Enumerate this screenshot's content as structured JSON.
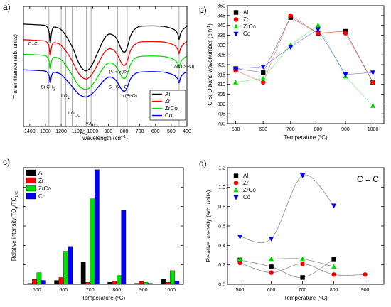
{
  "panel_letters": [
    "a)",
    "b)",
    "c)",
    "d)"
  ],
  "colors": {
    "Al": "#000000",
    "Zr": "#ff0000",
    "ZrCo": "#00dd00",
    "Co": "#0000ff"
  },
  "chart_data": [
    {
      "panel": "a)",
      "type": "line",
      "xlabel": "wavelength (cm",
      "xlabel_sup": "-1",
      "xlabel_end": ")",
      "ylabel": "Transmittance (arb. units)",
      "xlim": [
        1440,
        400
      ],
      "xticks": [
        1400,
        1300,
        1200,
        1100,
        1000,
        900,
        800,
        700,
        600,
        500,
        400
      ],
      "legend_position": "lower-right",
      "series": [
        {
          "name": "Al",
          "color": "#000000",
          "offset": 0.58,
          "x": [
            1440,
            1380,
            1330,
            1300,
            1290,
            1278,
            1270,
            1262,
            1250,
            1220,
            1200,
            1180,
            1150,
            1120,
            1100,
            1080,
            1060,
            1040,
            1020,
            1000,
            980,
            960,
            940,
            920,
            900,
            880,
            860,
            840,
            820,
            810,
            800,
            790,
            780,
            770,
            760,
            740,
            720,
            700,
            650,
            600,
            550,
            520,
            500,
            480,
            470,
            460,
            455,
            450,
            445,
            440,
            430,
            420,
            410,
            400
          ],
          "y": [
            0.0,
            0.01,
            0.02,
            0.03,
            0.06,
            0.16,
            0.4,
            0.2,
            0.07,
            0.08,
            0.12,
            0.2,
            0.36,
            0.56,
            0.74,
            0.88,
            0.97,
            1.0,
            0.95,
            0.85,
            0.7,
            0.55,
            0.4,
            0.28,
            0.22,
            0.22,
            0.26,
            0.36,
            0.52,
            0.58,
            0.6,
            0.58,
            0.5,
            0.38,
            0.26,
            0.14,
            0.08,
            0.05,
            0.04,
            0.04,
            0.05,
            0.07,
            0.09,
            0.12,
            0.15,
            0.2,
            0.26,
            0.33,
            0.26,
            0.2,
            0.14,
            0.1,
            0.07,
            0.05
          ]
        },
        {
          "name": "Zr",
          "color": "#ff0000",
          "offset": 0.44,
          "x": [
            1440,
            1380,
            1330,
            1300,
            1290,
            1278,
            1270,
            1262,
            1250,
            1220,
            1200,
            1180,
            1150,
            1120,
            1100,
            1080,
            1060,
            1040,
            1020,
            1000,
            980,
            960,
            940,
            920,
            900,
            880,
            860,
            840,
            820,
            810,
            800,
            790,
            780,
            770,
            760,
            740,
            720,
            700,
            650,
            600,
            550,
            520,
            500,
            480,
            470,
            460,
            455,
            450,
            445,
            440,
            430,
            420,
            410,
            400
          ],
          "y": [
            0.0,
            0.01,
            0.02,
            0.03,
            0.06,
            0.14,
            0.34,
            0.17,
            0.07,
            0.08,
            0.12,
            0.2,
            0.34,
            0.52,
            0.66,
            0.76,
            0.82,
            0.84,
            0.8,
            0.72,
            0.6,
            0.48,
            0.35,
            0.25,
            0.2,
            0.2,
            0.24,
            0.34,
            0.48,
            0.53,
            0.55,
            0.53,
            0.46,
            0.35,
            0.24,
            0.13,
            0.08,
            0.05,
            0.04,
            0.04,
            0.05,
            0.07,
            0.09,
            0.12,
            0.15,
            0.2,
            0.25,
            0.3,
            0.24,
            0.18,
            0.13,
            0.09,
            0.06,
            0.05
          ]
        },
        {
          "name": "ZrCo",
          "color": "#00dd00",
          "offset": 0.31,
          "x": [
            1440,
            1380,
            1330,
            1300,
            1290,
            1278,
            1270,
            1262,
            1250,
            1220,
            1200,
            1180,
            1150,
            1120,
            1100,
            1080,
            1060,
            1040,
            1020,
            1000,
            980,
            960,
            940,
            920,
            900,
            880,
            860,
            840,
            820,
            810,
            800,
            790,
            780,
            770,
            760,
            740,
            720,
            700,
            650,
            600,
            550,
            520,
            500,
            480,
            470,
            460,
            455,
            450,
            445,
            440,
            430,
            420,
            410,
            400
          ],
          "y": [
            0.0,
            0.01,
            0.02,
            0.03,
            0.06,
            0.14,
            0.32,
            0.16,
            0.07,
            0.08,
            0.12,
            0.2,
            0.34,
            0.5,
            0.62,
            0.7,
            0.74,
            0.75,
            0.72,
            0.65,
            0.55,
            0.44,
            0.33,
            0.24,
            0.19,
            0.19,
            0.23,
            0.32,
            0.45,
            0.5,
            0.52,
            0.5,
            0.43,
            0.33,
            0.23,
            0.12,
            0.07,
            0.05,
            0.04,
            0.04,
            0.05,
            0.07,
            0.09,
            0.12,
            0.15,
            0.19,
            0.24,
            0.29,
            0.23,
            0.17,
            0.12,
            0.09,
            0.06,
            0.05
          ]
        },
        {
          "name": "Co",
          "color": "#0000ff",
          "offset": 0.17,
          "x": [
            1440,
            1380,
            1330,
            1300,
            1290,
            1278,
            1270,
            1262,
            1250,
            1220,
            1200,
            1180,
            1150,
            1120,
            1100,
            1080,
            1060,
            1040,
            1020,
            1000,
            980,
            960,
            940,
            920,
            900,
            880,
            860,
            840,
            820,
            810,
            800,
            790,
            780,
            770,
            760,
            740,
            720,
            700,
            650,
            600,
            550,
            520,
            500,
            480,
            470,
            460,
            455,
            450,
            445,
            440,
            430,
            420,
            410,
            400
          ],
          "y": [
            0.0,
            0.01,
            0.02,
            0.03,
            0.05,
            0.12,
            0.28,
            0.14,
            0.06,
            0.07,
            0.1,
            0.17,
            0.28,
            0.4,
            0.48,
            0.54,
            0.57,
            0.58,
            0.55,
            0.5,
            0.43,
            0.35,
            0.27,
            0.2,
            0.16,
            0.16,
            0.2,
            0.28,
            0.4,
            0.44,
            0.46,
            0.44,
            0.38,
            0.29,
            0.2,
            0.11,
            0.07,
            0.05,
            0.04,
            0.04,
            0.05,
            0.07,
            0.09,
            0.12,
            0.15,
            0.19,
            0.24,
            0.28,
            0.22,
            0.16,
            0.11,
            0.08,
            0.06,
            0.05
          ]
        }
      ],
      "vertical_lines_x": [
        1278,
        1200,
        1170,
        1130,
        1080,
        1040,
        1010,
        840,
        800,
        780,
        450
      ],
      "annotations": [
        {
          "text": "C=C",
          "x": 1410,
          "y": 0.4
        },
        {
          "text": "Si-CH",
          "sub": "3",
          "x": 1330,
          "y": 0.9
        },
        {
          "text": "LO",
          "sub": "4",
          "x": 1200,
          "y": 1.0
        },
        {
          "text": "LO",
          "sub": "L/C",
          "x": 1155,
          "y": 1.2
        },
        {
          "text": "TO",
          "sub": "L/C",
          "x": 1050,
          "y": 1.32
        },
        {
          "text": "TO",
          "sub": "4",
          "x": 1085,
          "y": 1.42
        },
        {
          "text": "(C - Si)p",
          "x": 895,
          "y": 0.72
        },
        {
          "text": "C - Si - O",
          "x": 900,
          "y": 0.9
        },
        {
          "text": "v(Si-O)",
          "x": 810,
          "y": 1.0
        },
        {
          "text": "δ(O-Si-O)",
          "x": 480,
          "y": 0.66
        }
      ]
    },
    {
      "panel": "b)",
      "type": "scatter",
      "xlabel": "Temperature (",
      "xlabel_sup": "o",
      "xlabel_end": "C)",
      "ylabel": "C-Si-O band wavenumber (cm",
      "ylabel_sup": "-1",
      "ylabel_end": ")",
      "xlim": [
        470,
        1040
      ],
      "ylim": [
        790,
        850
      ],
      "x": [
        500,
        600,
        700,
        800,
        900,
        1000
      ],
      "xticks": [
        500,
        600,
        700,
        800,
        900,
        1000
      ],
      "yticks": [
        790,
        795,
        800,
        805,
        810,
        815,
        820,
        825,
        830,
        835,
        840,
        845,
        850
      ],
      "legend_position": "top-left",
      "series": [
        {
          "name": "Al",
          "marker": "square",
          "color": "#000000",
          "values": [
            818,
            816,
            844,
            836,
            837,
            811
          ]
        },
        {
          "name": "Zr",
          "marker": "circle",
          "color": "#ff0000",
          "values": [
            817,
            811,
            845,
            836,
            836,
            811
          ]
        },
        {
          "name": "ZrCo",
          "marker": "triangle-up",
          "color": "#00dd00",
          "values": [
            811,
            813,
            830,
            840,
            814,
            799
          ]
        },
        {
          "name": "Co",
          "marker": "triangle-down",
          "color": "#0000ff",
          "values": [
            818,
            819,
            829,
            838,
            815,
            816
          ]
        }
      ]
    },
    {
      "panel": "c)",
      "type": "bar",
      "xlabel": "Temperature (",
      "xlabel_sup": "o",
      "xlabel_end": "C)",
      "ylabel": "Relative intensity  TO",
      "ylabel_sub1": "4",
      "ylabel_mid": "/TO",
      "ylabel_sub2": "L/C",
      "categories": [
        "500",
        "600",
        "700",
        "800",
        "900",
        "1000"
      ],
      "ylim": [
        0,
        60
      ],
      "legend_position": "top-left",
      "series": [
        {
          "name": "Al",
          "color": "#000000",
          "values": [
            0.5,
            2,
            11.5,
            1,
            0.5,
            2.5
          ]
        },
        {
          "name": "Zr",
          "color": "#ff0000",
          "values": [
            2.5,
            3.5,
            1,
            1.5,
            1.5,
            1
          ]
        },
        {
          "name": "ZrCo",
          "color": "#00dd00",
          "values": [
            6,
            17,
            44,
            4.5,
            1,
            7
          ]
        },
        {
          "name": "Co",
          "color": "#0000ff",
          "values": [
            2,
            19.5,
            59,
            38,
            0.5,
            1.5
          ]
        }
      ]
    },
    {
      "panel": "d)",
      "type": "scatter",
      "title": "C = C",
      "xlabel": "Temperature (",
      "xlabel_sup": "o",
      "xlabel_end": "C)",
      "ylabel": "Relative intensity (arb. units)",
      "xlim": [
        460,
        960
      ],
      "ylim": [
        0,
        1.2
      ],
      "xticks": [
        500,
        600,
        700,
        800,
        900
      ],
      "yticks": [
        0.0,
        0.2,
        0.4,
        0.6,
        0.8,
        1.0,
        1.2
      ],
      "legend_position": "top-left",
      "series": [
        {
          "name": "Al",
          "marker": "square",
          "color": "#000000",
          "x": [
            500,
            600,
            700,
            800
          ],
          "values": [
            0.25,
            0.18,
            0.07,
            0.26
          ]
        },
        {
          "name": "Zr",
          "marker": "circle",
          "color": "#ff0000",
          "x": [
            500,
            600,
            700,
            800,
            900
          ],
          "values": [
            0.22,
            0.12,
            0.21,
            0.1,
            0.1
          ]
        },
        {
          "name": "ZrCo",
          "marker": "triangle-up",
          "color": "#00dd00",
          "x": [
            500,
            600,
            700,
            800
          ],
          "values": [
            0.26,
            0.26,
            0.26,
            0.18
          ]
        },
        {
          "name": "Co",
          "marker": "triangle-down",
          "color": "#0000ff",
          "x": [
            500,
            600,
            700,
            800
          ],
          "values": [
            0.49,
            0.47,
            1.12,
            0.81
          ]
        }
      ]
    }
  ]
}
